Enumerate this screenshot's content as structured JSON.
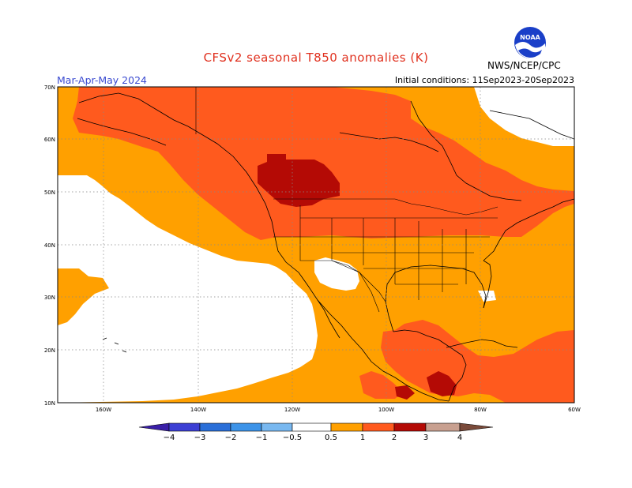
{
  "header": {
    "title": "CFSv2 seasonal T850 anomalies (K)",
    "season": "Mar-Apr-May 2024",
    "initial_conditions": "Initial conditions: 11Sep2023-20Sep2023",
    "agency": "NWS/NCEP/CPC",
    "logo_text": "NOAA"
  },
  "map": {
    "lat_labels": [
      "70N",
      "60N",
      "50N",
      "40N",
      "30N",
      "20N",
      "10N"
    ],
    "lon_labels": [
      "160W",
      "140W",
      "120W",
      "100W",
      "80W",
      "60W"
    ],
    "colors": {
      "c05_1": "#ffa000",
      "c1_2": "#ff5a1e",
      "c2_3": "#b40a05",
      "white": "#ffffff"
    }
  },
  "colorbar": {
    "labels": [
      "−4",
      "−3",
      "−2",
      "−1",
      "−0.5",
      "0.5",
      "1",
      "2",
      "3",
      "4"
    ],
    "colors": [
      "#3a1fa8",
      "#3c3fd4",
      "#2a6fd8",
      "#3c93e8",
      "#78b8f0",
      "#ffffff",
      "#ffa000",
      "#ff5a1e",
      "#b40a05",
      "#c8a090",
      "#7a4a3a"
    ]
  }
}
